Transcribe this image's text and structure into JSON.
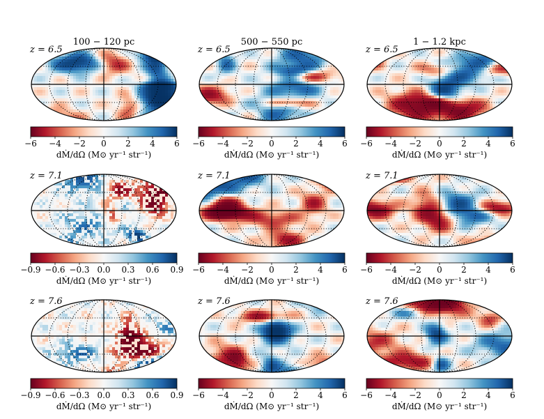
{
  "chart_data": {
    "type": "heatmap",
    "projection": "mollweide",
    "column_titles": [
      "100 − 120 pc",
      "500 − 550 pc",
      "1 − 1.2 kpc"
    ],
    "row_labels": [
      "z = 6.5",
      "z = 7.1",
      "z = 7.6"
    ],
    "colormap": "RdBu",
    "colorbar_label": "dṀ/dΩ (M⊙ yr⁻¹ str⁻¹)",
    "panels": [
      {
        "row": 0,
        "col": 0,
        "z_label": "z = 6.5",
        "vlim": [
          -6,
          6
        ],
        "ticks": [
          "−6",
          "−4",
          "−2",
          "0",
          "2",
          "4",
          "6"
        ]
      },
      {
        "row": 0,
        "col": 1,
        "z_label": "z = 6.5",
        "vlim": [
          -6,
          6
        ],
        "ticks": [
          "−6",
          "−4",
          "−2",
          "0",
          "2",
          "4",
          "6"
        ]
      },
      {
        "row": 0,
        "col": 2,
        "z_label": "z = 6.5",
        "vlim": [
          -6,
          6
        ],
        "ticks": [
          "−6",
          "−4",
          "−2",
          "0",
          "2",
          "4",
          "6"
        ]
      },
      {
        "row": 1,
        "col": 0,
        "z_label": "z = 7.1",
        "vlim": [
          -0.9,
          0.9
        ],
        "ticks": [
          "−0.9",
          "−0.6",
          "−0.3",
          "0.0",
          "0.3",
          "0.6",
          "0.9"
        ]
      },
      {
        "row": 1,
        "col": 1,
        "z_label": "z = 7.1",
        "vlim": [
          -6,
          6
        ],
        "ticks": [
          "−6",
          "−4",
          "−2",
          "0",
          "2",
          "4",
          "6"
        ]
      },
      {
        "row": 1,
        "col": 2,
        "z_label": "z = 7.1",
        "vlim": [
          -6,
          6
        ],
        "ticks": [
          "−6",
          "−4",
          "−2",
          "0",
          "2",
          "4",
          "6"
        ]
      },
      {
        "row": 2,
        "col": 0,
        "z_label": "z = 7.6",
        "vlim": [
          -0.9,
          0.9
        ],
        "ticks": [
          "−0.9",
          "−0.6",
          "−0.3",
          "0.0",
          "0.3",
          "0.6",
          "0.9"
        ]
      },
      {
        "row": 2,
        "col": 1,
        "z_label": "z = 7.6",
        "vlim": [
          -6,
          6
        ],
        "ticks": [
          "−6",
          "−4",
          "−2",
          "0",
          "2",
          "4",
          "6"
        ]
      },
      {
        "row": 2,
        "col": 2,
        "z_label": "z = 7.6",
        "vlim": [
          -6,
          6
        ],
        "ticks": [
          "−6",
          "−4",
          "−2",
          "0",
          "2",
          "4",
          "6"
        ]
      }
    ],
    "grid": true
  }
}
